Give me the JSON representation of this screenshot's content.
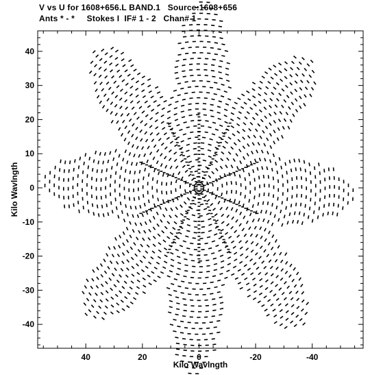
{
  "header": {
    "line1": "V vs U for 1608+656.L BAND.1   Source:1608+656",
    "line2": "Ants * - *     Stokes I  IF# 1 - 2   Chan# 1"
  },
  "chart_data": {
    "type": "scatter",
    "xlabel": "Kilo Wavlngth",
    "ylabel": "Kilo Wavlngth",
    "x_reversed": true,
    "xlim": [
      57,
      -58
    ],
    "ylim": [
      -47,
      46
    ],
    "x_ticks": [
      40,
      20,
      0,
      -20,
      -40
    ],
    "y_ticks": [
      40,
      30,
      20,
      10,
      0,
      -10,
      -20,
      -30,
      -40
    ],
    "x_tick_labels": [
      "40",
      "20",
      "0",
      "-20",
      "-40"
    ],
    "y_tick_labels": [
      "40",
      "30",
      "20",
      "10",
      "0",
      "-10",
      "-20",
      "-30",
      "-40"
    ],
    "grid": false,
    "marker": "short dash",
    "pattern": {
      "description": "radially symmetric uv-coverage with 8 lobes, max radius about 55 kilo wavelength",
      "lobes": 8,
      "max_radius": 55,
      "lobe_angles_deg": [
        2,
        47,
        92,
        137,
        182,
        227,
        272,
        317
      ]
    }
  }
}
